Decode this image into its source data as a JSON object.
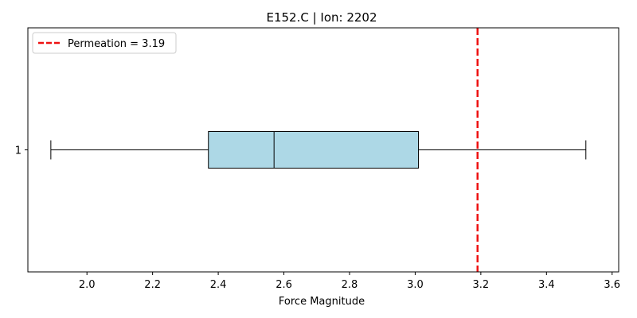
{
  "chart_data": {
    "type": "boxplot",
    "title": "E152.C | Ion: 2202",
    "xlabel": "Force Magnitude",
    "ylabel": "",
    "orientation": "horizontal",
    "xlim": [
      1.82,
      3.62
    ],
    "xticks": [
      2.0,
      2.2,
      2.4,
      2.6,
      2.8,
      3.0,
      3.2,
      3.4,
      3.6
    ],
    "xtick_labels": [
      "2.0",
      "2.2",
      "2.4",
      "2.6",
      "2.8",
      "3.0",
      "3.2",
      "3.4",
      "3.6"
    ],
    "categories": [
      "1"
    ],
    "boxes": [
      {
        "category": "1",
        "whisker_low": 1.89,
        "q1": 2.37,
        "median": 2.57,
        "q3": 3.01,
        "whisker_high": 3.52
      }
    ],
    "reference_line": {
      "value": 3.19,
      "label": "Permeation = 3.19",
      "color": "#ee1111",
      "style": "dashed"
    },
    "box_fill": "#add8e6",
    "legend_position": "top-left",
    "grid": false
  }
}
